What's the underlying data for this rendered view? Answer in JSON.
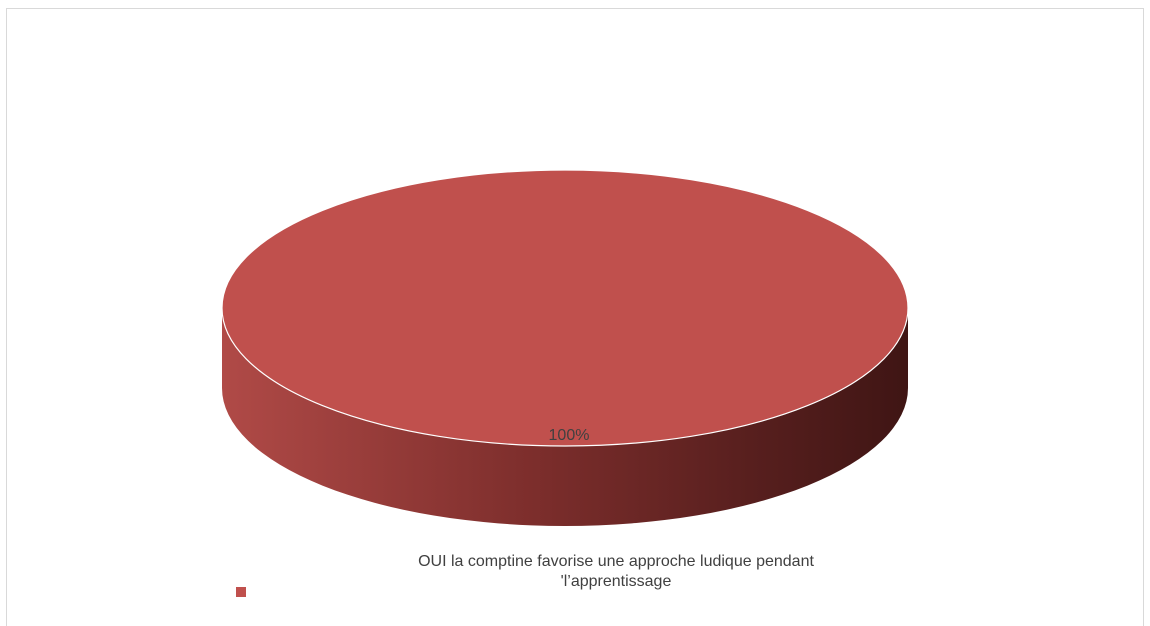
{
  "chart_data": {
    "type": "pie",
    "style": "3d",
    "slices": [
      {
        "label": "OUI la comptine favorise une approche ludique pendant\n'l’apprentissage",
        "value": 100,
        "color": "#c0504d"
      }
    ],
    "data_labels": [
      "100%"
    ],
    "legend_position": "bottom"
  }
}
